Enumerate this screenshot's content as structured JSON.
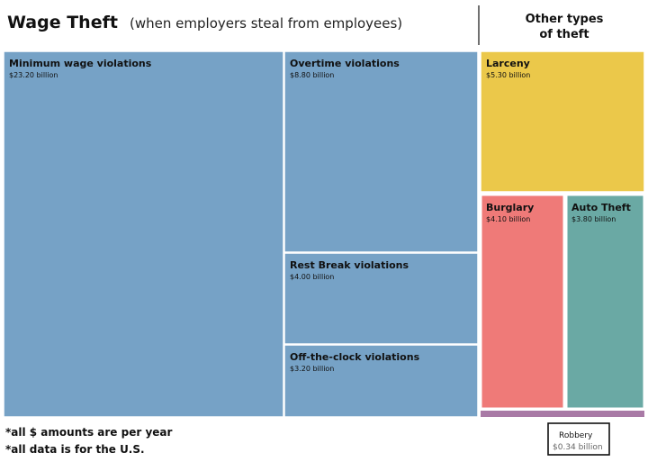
{
  "chart_data": {
    "type": "treemap",
    "title": "Wage Theft",
    "subtitle": "(when employers steal from employees)",
    "side_title_lines": [
      "Other types",
      "of theft"
    ],
    "groups": [
      {
        "name": "Wage Theft",
        "items": [
          {
            "label": "Minimum wage violations",
            "value_text": "$23.20 billion",
            "value": 23.2
          },
          {
            "label": "Overtime violations",
            "value_text": "$8.80 billion",
            "value": 8.8
          },
          {
            "label": "Rest Break violations",
            "value_text": "$4.00 billion",
            "value": 4.0
          },
          {
            "label": "Off-the-clock violations",
            "value_text": "$3.20 billion",
            "value": 3.2
          }
        ]
      },
      {
        "name": "Other types of theft",
        "items": [
          {
            "label": "Larceny",
            "value_text": "$5.30 billion",
            "value": 5.3
          },
          {
            "label": "Burglary",
            "value_text": "$4.10 billion",
            "value": 4.1
          },
          {
            "label": "Auto Theft",
            "value_text": "$3.80 billion",
            "value": 3.8
          },
          {
            "label": "Robbery",
            "value_text": "$0.34 billion",
            "value": 0.34
          }
        ]
      }
    ],
    "notes": [
      "*all $ amounts are per year",
      "*all data is for the U.S."
    ]
  },
  "colors": {
    "wage": "#76a2c6",
    "larceny": "#ebc84a",
    "burglary": "#ef7a78",
    "auto_theft": "#6aa9a4",
    "robbery": "#a97aa6"
  }
}
